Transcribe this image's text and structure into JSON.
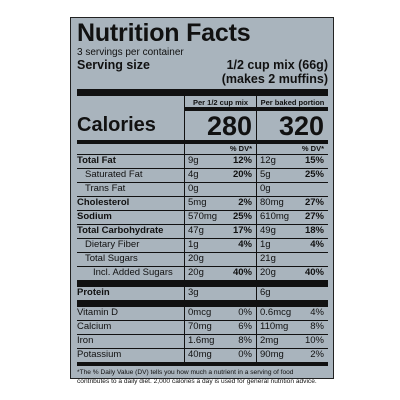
{
  "title": "Nutrition Facts",
  "servings": "3 servings per container",
  "serving_size_label": "Serving size",
  "serving_size_value_1": "1/2 cup mix (66g)",
  "serving_size_value_2": "(makes 2 muffins)",
  "col1_header": "Per 1/2 cup mix",
  "col2_header": "Per baked portion",
  "calories_label": "Calories",
  "calories_mix": "280",
  "calories_baked": "320",
  "dv_header": "% DV*",
  "nutrients": [
    {
      "label": "Total Fat",
      "style": "bold",
      "mix_amt": "9g",
      "mix_dv": "12%",
      "baked_amt": "12g",
      "baked_dv": "15%"
    },
    {
      "label": "Saturated Fat",
      "style": "ind1",
      "mix_amt": "4g",
      "mix_dv": "20%",
      "baked_amt": "5g",
      "baked_dv": "25%"
    },
    {
      "label": "Trans Fat",
      "style": "ind1",
      "mix_amt": "0g",
      "mix_dv": "",
      "baked_amt": "0g",
      "baked_dv": ""
    },
    {
      "label": "Cholesterol",
      "style": "bold",
      "mix_amt": "5mg",
      "mix_dv": "2%",
      "baked_amt": "80mg",
      "baked_dv": "27%"
    },
    {
      "label": "Sodium",
      "style": "bold",
      "mix_amt": "570mg",
      "mix_dv": "25%",
      "baked_amt": "610mg",
      "baked_dv": "27%"
    },
    {
      "label": "Total Carbohydrate",
      "style": "bold",
      "mix_amt": "47g",
      "mix_dv": "17%",
      "baked_amt": "49g",
      "baked_dv": "18%"
    },
    {
      "label": "Dietary Fiber",
      "style": "ind1",
      "mix_amt": "1g",
      "mix_dv": "4%",
      "baked_amt": "1g",
      "baked_dv": "4%"
    },
    {
      "label": "Total Sugars",
      "style": "ind1",
      "mix_amt": "20g",
      "mix_dv": "",
      "baked_amt": "21g",
      "baked_dv": ""
    },
    {
      "label": "Incl. Added Sugars",
      "style": "ind2",
      "mix_amt": "20g",
      "mix_dv": "40%",
      "baked_amt": "20g",
      "baked_dv": "40%"
    }
  ],
  "protein": {
    "label": "Protein",
    "mix_amt": "3g",
    "baked_amt": "6g"
  },
  "vitamins": [
    {
      "label": "Vitamin D",
      "mix_amt": "0mcg",
      "mix_dv": "0%",
      "baked_amt": "0.6mcg",
      "baked_dv": "4%"
    },
    {
      "label": "Calcium",
      "mix_amt": "70mg",
      "mix_dv": "6%",
      "baked_amt": "110mg",
      "baked_dv": "8%"
    },
    {
      "label": "Iron",
      "mix_amt": "1.6mg",
      "mix_dv": "8%",
      "baked_amt": "2mg",
      "baked_dv": "10%"
    },
    {
      "label": "Potassium",
      "mix_amt": "40mg",
      "mix_dv": "0%",
      "baked_amt": "90mg",
      "baked_dv": "2%"
    }
  ],
  "footnote": "*The % Daily Value (DV) tells you how much a nutrient in a serving of food contributes to a daily diet. 2,000 calories a day is used for general nutrition advice."
}
